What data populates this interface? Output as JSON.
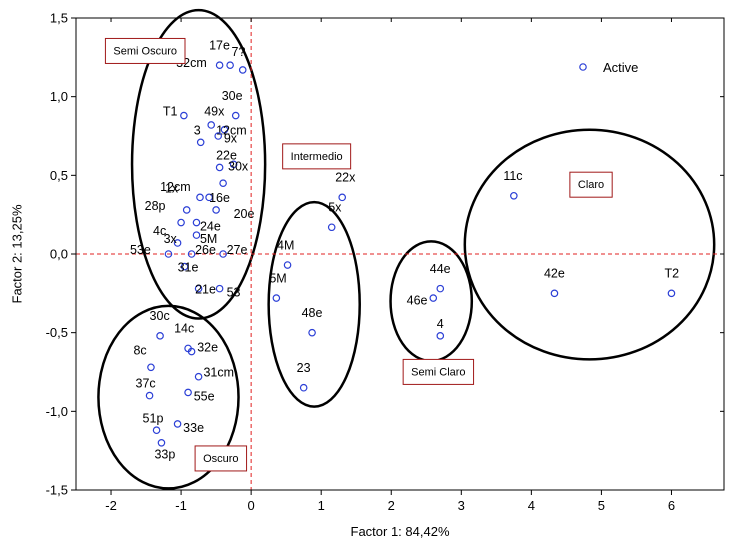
{
  "chart_data": {
    "type": "scatter",
    "xlabel": "Factor 1: 84,42%",
    "ylabel": "Factor 2: 13,25%",
    "xlim": [
      -2.5,
      6.75
    ],
    "ylim": [
      -1.5,
      1.5
    ],
    "xticks": [
      {
        "v": -2,
        "label": "-2"
      },
      {
        "v": -1,
        "label": "-1"
      },
      {
        "v": 0,
        "label": "0"
      },
      {
        "v": 1,
        "label": "1"
      },
      {
        "v": 2,
        "label": "2"
      },
      {
        "v": 3,
        "label": "3"
      },
      {
        "v": 4,
        "label": "4"
      },
      {
        "v": 5,
        "label": "5"
      },
      {
        "v": 6,
        "label": "6"
      }
    ],
    "yticks": [
      {
        "v": -1.5,
        "label": "-1,5"
      },
      {
        "v": -1.0,
        "label": "-1,0"
      },
      {
        "v": -0.5,
        "label": "-0,5"
      },
      {
        "v": 0.0,
        "label": "0,0"
      },
      {
        "v": 0.5,
        "label": "0,5"
      },
      {
        "v": 1.0,
        "label": "1,0"
      },
      {
        "v": 1.5,
        "label": "1,5"
      }
    ],
    "grid": false,
    "reference_lines": {
      "x": 0,
      "y": 0,
      "color": "#e02020",
      "style": "dashed"
    },
    "legend": {
      "label": "Active",
      "placement": "top-right"
    },
    "marker_color": "#2b3fd6",
    "points": [
      {
        "label": "17e",
        "x": -0.45,
        "y": 1.2,
        "ldx": -0.15,
        "ldy": 0.1
      },
      {
        "label": "7?",
        "x": -0.3,
        "y": 1.2,
        "ldx": 0.02,
        "ldy": 0.06
      },
      {
        "label": "32cm",
        "x": -0.12,
        "y": 1.17,
        "ldx": -0.95,
        "ldy": 0.02
      },
      {
        "label": "T1",
        "x": -0.96,
        "y": 0.88,
        "ldx": -0.3,
        "ldy": 0.0
      },
      {
        "label": "30e",
        "x": -0.22,
        "y": 0.88,
        "ldx": -0.2,
        "ldy": 0.1
      },
      {
        "label": "49x",
        "x": -0.57,
        "y": 0.82,
        "ldx": -0.1,
        "ldy": 0.06
      },
      {
        "label": "12cm",
        "x": -0.38,
        "y": 0.79,
        "ldx": -0.12,
        "ldy": -0.03
      },
      {
        "label": "3",
        "x": -0.72,
        "y": 0.71,
        "ldx": -0.1,
        "ldy": 0.05
      },
      {
        "label": "9x",
        "x": -0.47,
        "y": 0.75,
        "ldx": 0.08,
        "ldy": -0.04
      },
      {
        "label": "22e",
        "x": -0.45,
        "y": 0.55,
        "ldx": -0.05,
        "ldy": 0.05
      },
      {
        "label": "30x",
        "x": -0.25,
        "y": 0.57,
        "ldx": -0.08,
        "ldy": -0.04
      },
      {
        "label": "12cm",
        "x": -0.4,
        "y": 0.45,
        "ldx": -0.9,
        "ldy": -0.05
      },
      {
        "label": "1x",
        "x": -0.73,
        "y": 0.36,
        "ldx": -0.5,
        "ldy": 0.03
      },
      {
        "label": "16e",
        "x": -0.6,
        "y": 0.36,
        "ldx": 0.0,
        "ldy": -0.03
      },
      {
        "label": "28p",
        "x": -0.92,
        "y": 0.28,
        "ldx": -0.6,
        "ldy": 0.0
      },
      {
        "label": "20e",
        "x": -0.5,
        "y": 0.28,
        "ldx": 0.25,
        "ldy": -0.05
      },
      {
        "label": "4c",
        "x": -1.0,
        "y": 0.2,
        "ldx": -0.4,
        "ldy": -0.08
      },
      {
        "label": "24e",
        "x": -0.78,
        "y": 0.2,
        "ldx": 0.05,
        "ldy": -0.05
      },
      {
        "label": "3x",
        "x": -1.05,
        "y": 0.07,
        "ldx": -0.2,
        "ldy": 0.0
      },
      {
        "label": "5M",
        "x": -0.78,
        "y": 0.12,
        "ldx": 0.05,
        "ldy": -0.05
      },
      {
        "label": "53e",
        "x": -1.18,
        "y": 0.0,
        "ldx": -0.55,
        "ldy": 0.0
      },
      {
        "label": "26e",
        "x": -0.85,
        "y": 0.0,
        "ldx": 0.05,
        "ldy": 0.0
      },
      {
        "label": "27e",
        "x": -0.4,
        "y": 0.0,
        "ldx": 0.05,
        "ldy": 0.0
      },
      {
        "label": "31e",
        "x": -0.95,
        "y": -0.08,
        "ldx": -0.1,
        "ldy": -0.03
      },
      {
        "label": "21e",
        "x": -0.75,
        "y": -0.22,
        "ldx": -0.05,
        "ldy": -0.03
      },
      {
        "label": "53",
        "x": -0.45,
        "y": -0.22,
        "ldx": 0.1,
        "ldy": -0.05
      },
      {
        "label": "22x",
        "x": 1.3,
        "y": 0.36,
        "ldx": -0.1,
        "ldy": 0.1
      },
      {
        "label": "5x",
        "x": 1.15,
        "y": 0.17,
        "ldx": -0.05,
        "ldy": 0.1
      },
      {
        "label": "4M",
        "x": 0.52,
        "y": -0.07,
        "ldx": -0.15,
        "ldy": 0.1
      },
      {
        "label": "5M",
        "x": 0.36,
        "y": -0.28,
        "ldx": -0.1,
        "ldy": 0.1
      },
      {
        "label": "48e",
        "x": 0.87,
        "y": -0.5,
        "ldx": -0.15,
        "ldy": 0.1
      },
      {
        "label": "23",
        "x": 0.75,
        "y": -0.85,
        "ldx": -0.1,
        "ldy": 0.1
      },
      {
        "label": "44e",
        "x": 2.7,
        "y": -0.22,
        "ldx": -0.15,
        "ldy": 0.1
      },
      {
        "label": "46e",
        "x": 2.6,
        "y": -0.28,
        "ldx": -0.38,
        "ldy": -0.04
      },
      {
        "label": "4",
        "x": 2.7,
        "y": -0.52,
        "ldx": -0.05,
        "ldy": 0.05
      },
      {
        "label": "11c",
        "x": 3.75,
        "y": 0.37,
        "ldx": -0.15,
        "ldy": 0.1
      },
      {
        "label": "42e",
        "x": 4.33,
        "y": -0.25,
        "ldx": -0.15,
        "ldy": 0.1
      },
      {
        "label": "T2",
        "x": 6.0,
        "y": -0.25,
        "ldx": -0.1,
        "ldy": 0.1
      },
      {
        "label": "30c",
        "x": -1.3,
        "y": -0.52,
        "ldx": -0.15,
        "ldy": 0.1
      },
      {
        "label": "14c",
        "x": -0.9,
        "y": -0.6,
        "ldx": -0.2,
        "ldy": 0.1
      },
      {
        "label": "32e",
        "x": -0.85,
        "y": -0.62,
        "ldx": 0.08,
        "ldy": 0.0
      },
      {
        "label": "8c",
        "x": -1.43,
        "y": -0.72,
        "ldx": -0.25,
        "ldy": 0.08
      },
      {
        "label": "31cm",
        "x": -0.75,
        "y": -0.78,
        "ldx": 0.07,
        "ldy": 0.0
      },
      {
        "label": "37c",
        "x": -1.45,
        "y": -0.9,
        "ldx": -0.2,
        "ldy": 0.05
      },
      {
        "label": "55e",
        "x": -0.9,
        "y": -0.88,
        "ldx": 0.08,
        "ldy": -0.05
      },
      {
        "label": "51p",
        "x": -1.35,
        "y": -1.12,
        "ldx": -0.2,
        "ldy": 0.05
      },
      {
        "label": "33e",
        "x": -1.05,
        "y": -1.08,
        "ldx": 0.08,
        "ldy": -0.05
      },
      {
        "label": "33p",
        "x": -1.28,
        "y": -1.2,
        "ldx": -0.1,
        "ldy": -0.1
      }
    ],
    "ellipses": [
      {
        "name": "semi-oscuro-ellipse",
        "cx": -0.75,
        "cy": 0.57,
        "rx": 0.95,
        "ry": 0.98
      },
      {
        "name": "intermedio-ellipse",
        "cx": 0.9,
        "cy": -0.32,
        "rx": 0.65,
        "ry": 0.65
      },
      {
        "name": "semi-claro-ellipse",
        "cx": 2.57,
        "cy": -0.3,
        "rx": 0.58,
        "ry": 0.38
      },
      {
        "name": "claro-ellipse",
        "cx": 4.83,
        "cy": 0.06,
        "rx": 1.78,
        "ry": 0.73
      },
      {
        "name": "oscuro-ellipse",
        "cx": -1.18,
        "cy": -0.91,
        "rx": 1.0,
        "ry": 0.58
      }
    ],
    "group_labels": [
      {
        "name": "semi-oscuro-label",
        "text": "Semi Oscuro",
        "x": -2.08,
        "y": 1.37
      },
      {
        "name": "intermedio-label",
        "text": "Intermedio",
        "x": 0.45,
        "y": 0.7
      },
      {
        "name": "claro-label",
        "text": "Claro",
        "x": 4.55,
        "y": 0.52
      },
      {
        "name": "semi-claro-label",
        "text": "Semi Claro",
        "x": 2.17,
        "y": -0.67
      },
      {
        "name": "oscuro-label",
        "text": "Oscuro",
        "x": -0.8,
        "y": -1.22
      }
    ]
  }
}
